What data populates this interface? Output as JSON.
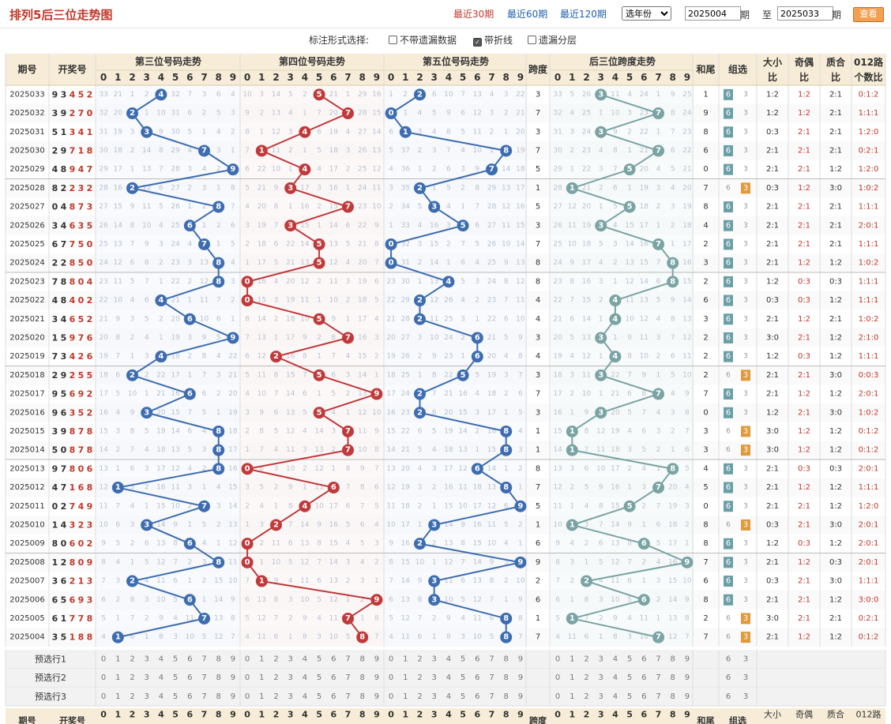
{
  "page_title": "排列5后三位走势图",
  "range_links": [
    {
      "label": "最近30期",
      "active": true
    },
    {
      "label": "最近60期",
      "active": false
    },
    {
      "label": "最近120期",
      "active": false
    }
  ],
  "year_select": "选年份",
  "issue_from": "2025004",
  "issue_to": "2025033",
  "issue_label": "期",
  "to_label": "至",
  "query_button": "查看",
  "options_label": "标注形式选择:",
  "options": [
    {
      "label": "不带遗漏数据",
      "checked": false
    },
    {
      "label": "带折线",
      "checked": true
    },
    {
      "label": "遗漏分层",
      "checked": false
    }
  ],
  "headers": {
    "issue": "期号",
    "number": "开奖号",
    "pos3": "第三位号码走势",
    "pos4": "第四位号码走势",
    "pos5": "第五位号码走势",
    "span": "跨度",
    "span_trend": "后三位跨度走势",
    "sum_tail": "和尾",
    "group": "组选",
    "size": [
      "大小",
      "比"
    ],
    "odd": [
      "奇偶",
      "比"
    ],
    "prime": [
      "质合",
      "比"
    ],
    "route": [
      "012路",
      "个数比"
    ]
  },
  "digits": [
    "0",
    "1",
    "2",
    "3",
    "4",
    "5",
    "6",
    "7",
    "8",
    "9"
  ],
  "rows": [
    {
      "issue": "2025033",
      "num": "93452",
      "span": "3",
      "tail": "1",
      "group": "6",
      "size": "1:2",
      "odd": "1:2",
      "prime": "2:1",
      "route": "0:1:2"
    },
    {
      "issue": "2025032",
      "num": "39270",
      "span": "7",
      "tail": "9",
      "group": "6",
      "size": "1:2",
      "odd": "1:2",
      "prime": "2:1",
      "route": "1:1:1"
    },
    {
      "issue": "2025031",
      "num": "51341",
      "span": "3",
      "tail": "8",
      "group": "6",
      "size": "0:3",
      "odd": "2:1",
      "prime": "2:1",
      "route": "1:2:0"
    },
    {
      "issue": "2025030",
      "num": "29718",
      "span": "7",
      "tail": "6",
      "group": "6",
      "size": "2:1",
      "odd": "2:1",
      "prime": "2:1",
      "route": "0:2:1"
    },
    {
      "issue": "2025029",
      "num": "48947",
      "span": "5",
      "tail": "0",
      "group": "6",
      "size": "2:1",
      "odd": "2:1",
      "prime": "1:2",
      "route": "1:2:0"
    },
    {
      "issue": "2025028",
      "num": "82232",
      "span": "1",
      "tail": "7",
      "group": "3",
      "size": "0:3",
      "odd": "1:2",
      "prime": "3:0",
      "route": "1:0:2"
    },
    {
      "issue": "2025027",
      "num": "04873",
      "span": "5",
      "tail": "8",
      "group": "6",
      "size": "2:1",
      "odd": "2:1",
      "prime": "2:1",
      "route": "1:1:1"
    },
    {
      "issue": "2025026",
      "num": "34635",
      "span": "3",
      "tail": "4",
      "group": "6",
      "size": "2:1",
      "odd": "2:1",
      "prime": "2:1",
      "route": "2:0:1"
    },
    {
      "issue": "2025025",
      "num": "67750",
      "span": "7",
      "tail": "2",
      "group": "6",
      "size": "2:1",
      "odd": "2:1",
      "prime": "2:1",
      "route": "1:1:1"
    },
    {
      "issue": "2025024",
      "num": "22850",
      "span": "8",
      "tail": "3",
      "group": "6",
      "size": "2:1",
      "odd": "1:2",
      "prime": "1:2",
      "route": "1:0:2"
    },
    {
      "issue": "2025023",
      "num": "78804",
      "span": "8",
      "tail": "2",
      "group": "6",
      "size": "1:2",
      "odd": "0:3",
      "prime": "0:3",
      "route": "1:1:1"
    },
    {
      "issue": "2025022",
      "num": "48402",
      "span": "4",
      "tail": "6",
      "group": "6",
      "size": "0:3",
      "odd": "0:3",
      "prime": "1:2",
      "route": "1:1:1"
    },
    {
      "issue": "2025021",
      "num": "34652",
      "span": "4",
      "tail": "3",
      "group": "6",
      "size": "2:1",
      "odd": "1:2",
      "prime": "2:1",
      "route": "1:0:2"
    },
    {
      "issue": "2025020",
      "num": "15976",
      "span": "3",
      "tail": "2",
      "group": "6",
      "size": "3:0",
      "odd": "2:1",
      "prime": "1:2",
      "route": "2:1:0"
    },
    {
      "issue": "2025019",
      "num": "73426",
      "span": "4",
      "tail": "2",
      "group": "6",
      "size": "1:2",
      "odd": "0:3",
      "prime": "1:2",
      "route": "1:1:1"
    },
    {
      "issue": "2025018",
      "num": "29255",
      "span": "3",
      "tail": "2",
      "group": "3",
      "size": "2:1",
      "odd": "2:1",
      "prime": "3:0",
      "route": "0:0:3"
    },
    {
      "issue": "2025017",
      "num": "95692",
      "span": "7",
      "tail": "7",
      "group": "6",
      "size": "2:1",
      "odd": "1:2",
      "prime": "1:2",
      "route": "2:0:1"
    },
    {
      "issue": "2025016",
      "num": "96352",
      "span": "3",
      "tail": "0",
      "group": "6",
      "size": "1:2",
      "odd": "2:1",
      "prime": "3:0",
      "route": "1:0:2"
    },
    {
      "issue": "2025015",
      "num": "39878",
      "span": "1",
      "tail": "3",
      "group": "3",
      "size": "3:0",
      "odd": "1:2",
      "prime": "1:2",
      "route": "0:1:2"
    },
    {
      "issue": "2025014",
      "num": "50878",
      "span": "1",
      "tail": "3",
      "group": "3",
      "size": "3:0",
      "odd": "1:2",
      "prime": "1:2",
      "route": "0:1:2"
    },
    {
      "issue": "2025013",
      "num": "97806",
      "span": "8",
      "tail": "4",
      "group": "6",
      "size": "2:1",
      "odd": "0:3",
      "prime": "0:3",
      "route": "2:0:1"
    },
    {
      "issue": "2025012",
      "num": "47168",
      "span": "7",
      "tail": "5",
      "group": "6",
      "size": "2:1",
      "odd": "1:2",
      "prime": "1:2",
      "route": "1:1:1"
    },
    {
      "issue": "2025011",
      "num": "02749",
      "span": "5",
      "tail": "0",
      "group": "6",
      "size": "2:1",
      "odd": "2:1",
      "prime": "1:2",
      "route": "1:2:0"
    },
    {
      "issue": "2025010",
      "num": "14323",
      "span": "1",
      "tail": "8",
      "group": "3",
      "size": "0:3",
      "odd": "2:1",
      "prime": "3:0",
      "route": "2:0:1"
    },
    {
      "issue": "2025009",
      "num": "80602",
      "span": "6",
      "tail": "8",
      "group": "6",
      "size": "1:2",
      "odd": "0:3",
      "prime": "1:2",
      "route": "2:0:1"
    },
    {
      "issue": "2025008",
      "num": "12809",
      "span": "9",
      "tail": "7",
      "group": "6",
      "size": "2:1",
      "odd": "1:2",
      "prime": "0:3",
      "route": "2:0:1"
    },
    {
      "issue": "2025007",
      "num": "36213",
      "span": "2",
      "tail": "6",
      "group": "6",
      "size": "0:3",
      "odd": "2:1",
      "prime": "3:0",
      "route": "1:1:1"
    },
    {
      "issue": "2025006",
      "num": "65693",
      "span": "6",
      "tail": "8",
      "group": "6",
      "size": "2:1",
      "odd": "2:1",
      "prime": "1:2",
      "route": "3:0:0"
    },
    {
      "issue": "2025005",
      "num": "61778",
      "span": "1",
      "tail": "2",
      "group": "3",
      "size": "3:0",
      "odd": "2:1",
      "prime": "2:1",
      "route": "0:2:1"
    },
    {
      "issue": "2025004",
      "num": "35188",
      "span": "7",
      "tail": "7",
      "group": "3",
      "size": "2:1",
      "odd": "1:2",
      "prime": "1:2",
      "route": "0:1:2"
    }
  ],
  "preselect_rows": [
    "预选行1",
    "预选行2",
    "预选行3"
  ],
  "group_labels": [
    "6",
    "3"
  ],
  "footer": {
    "issue": "期号",
    "number": "开奖号",
    "span": "跨度",
    "sum_tail": "和尾",
    "group": "组选",
    "size": "大小",
    "odd": "奇偶",
    "prime": "质合",
    "route": "012路"
  },
  "colors": {
    "pos3": "#3d6db0",
    "pos4": "#c0393b",
    "pos5": "#3d6db0",
    "span": "#7aa3a3",
    "header_bg": "#f6ecd7",
    "group3": "#e09a3c",
    "group6": "#6a9fa8"
  }
}
